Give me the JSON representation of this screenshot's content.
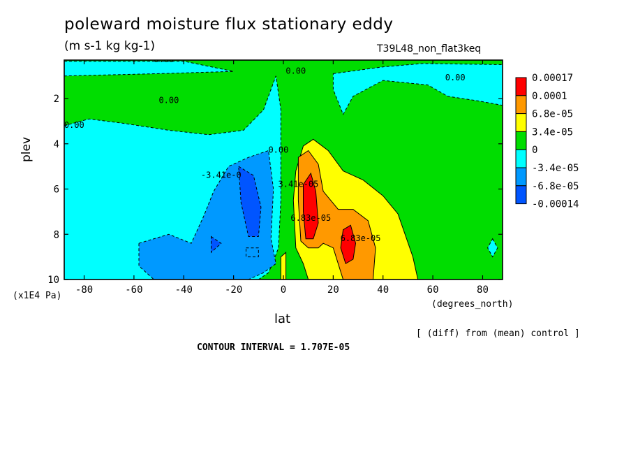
{
  "title": "poleward moisture flux stationary eddy",
  "units": "(m s-1 kg kg-1)",
  "run_id": "T39L48_non_flat3keq",
  "diff_note": "[ (diff) from (mean) control ]",
  "contour_interval": "CONTOUR INTERVAL = 1.707E-05",
  "chart_data": {
    "type": "heatmap",
    "xlabel": "lat",
    "xunit": "(degrees_north)",
    "ylabel": "plev",
    "yunit": "(x1E4 Pa)",
    "xlim": [
      -88,
      88
    ],
    "ylim": [
      10,
      0.3
    ],
    "xticks": [
      -80,
      -60,
      -40,
      -20,
      0,
      20,
      40,
      60,
      80
    ],
    "xtick_labels": [
      "-80",
      "-60",
      "-40",
      "-20",
      "0",
      "20",
      "40",
      "60",
      "80"
    ],
    "yticks": [
      2,
      4,
      6,
      8,
      10
    ],
    "ytick_labels": [
      "2",
      "4",
      "6",
      "8",
      "10"
    ],
    "colorbar": {
      "labels": [
        "0.00017",
        "0.0001",
        "6.8e-05",
        "3.4e-05",
        "0",
        "-3.4e-05",
        "-6.8e-05",
        "-0.00014"
      ],
      "colors": [
        "#ff0000",
        "#ff9900",
        "#ffff00",
        "#00dd00",
        "#00ffff",
        "#0099ff",
        "#0055ff"
      ]
    },
    "contour_labels": [
      {
        "text": "0.00",
        "x": -48,
        "y": 0.4
      },
      {
        "text": "0.00",
        "x": 5,
        "y": 0.9
      },
      {
        "text": "0.00",
        "x": 69,
        "y": 1.2
      },
      {
        "text": "0.00",
        "x": -46,
        "y": 2.2
      },
      {
        "text": "0.00",
        "x": -84,
        "y": 3.3
      },
      {
        "text": "0.00",
        "x": -2,
        "y": 4.4
      },
      {
        "text": "-3.41e-0",
        "x": -25,
        "y": 5.5
      },
      {
        "text": "3.41e-05",
        "x": 6,
        "y": 5.9
      },
      {
        "text": "6.83e-05",
        "x": 11,
        "y": 7.4
      },
      {
        "text": "6.83e-05",
        "x": 31,
        "y": 8.3
      }
    ],
    "fields": [
      {
        "level": "0",
        "color": "#00dd00",
        "points": [
          [
            -88,
            0.3
          ],
          [
            88,
            0.3
          ],
          [
            88,
            10
          ],
          [
            -88,
            10
          ]
        ]
      },
      {
        "level": "-3.4e-05",
        "color": "#00ffff",
        "points": [
          [
            -88,
            3.2
          ],
          [
            -78,
            2.9
          ],
          [
            -64,
            3.1
          ],
          [
            -46,
            3.4
          ],
          [
            -30,
            3.6
          ],
          [
            -16,
            3.4
          ],
          [
            -8,
            2.5
          ],
          [
            -3,
            1.0
          ],
          [
            -1,
            2.5
          ],
          [
            -1,
            6.5
          ],
          [
            -2,
            8.6
          ],
          [
            -4,
            9.2
          ],
          [
            -6,
            9.7
          ],
          [
            -10,
            10
          ],
          [
            -88,
            10
          ]
        ]
      },
      {
        "level": "-3.4e-05",
        "color": "#00ffff",
        "points": [
          [
            -88,
            0.35
          ],
          [
            -40,
            0.35
          ],
          [
            -20,
            0.8
          ],
          [
            -50,
            0.9
          ],
          [
            -88,
            1.0
          ]
        ]
      },
      {
        "level": "-3.4e-05",
        "color": "#00ffff",
        "points": [
          [
            20,
            0.9
          ],
          [
            40,
            0.6
          ],
          [
            56,
            0.45
          ],
          [
            88,
            0.5
          ],
          [
            88,
            2.3
          ],
          [
            78,
            2.1
          ],
          [
            66,
            1.9
          ],
          [
            58,
            1.4
          ],
          [
            40,
            1.2
          ],
          [
            28,
            1.9
          ],
          [
            24,
            2.7
          ],
          [
            20,
            1.6
          ]
        ]
      },
      {
        "level": "-3.4e-05",
        "color": "#00ffff",
        "points": [
          [
            84,
            8.2
          ],
          [
            86,
            8.6
          ],
          [
            84,
            9.0
          ],
          [
            82,
            8.6
          ]
        ]
      },
      {
        "level": "-6.8e-05",
        "color": "#0099ff",
        "points": [
          [
            -58,
            8.4
          ],
          [
            -46,
            8.0
          ],
          [
            -37,
            8.4
          ],
          [
            -32,
            7.2
          ],
          [
            -28,
            6.1
          ],
          [
            -22,
            5.0
          ],
          [
            -14,
            4.6
          ],
          [
            -6,
            4.3
          ],
          [
            -4,
            6.0
          ],
          [
            -5,
            8.2
          ],
          [
            -3,
            9.3
          ],
          [
            -8,
            9.7
          ],
          [
            -14,
            10
          ],
          [
            -52,
            10
          ],
          [
            -58,
            9.4
          ]
        ]
      },
      {
        "level": "-6.8e-05",
        "color": "#0099ff",
        "points": [
          [
            -15,
            8.6
          ],
          [
            -10,
            8.6
          ],
          [
            -10,
            9.0
          ],
          [
            -15,
            9.0
          ]
        ]
      },
      {
        "level": "-0.00014",
        "color": "#0055ff",
        "points": [
          [
            -18,
            5.0
          ],
          [
            -12,
            5.4
          ],
          [
            -9,
            6.8
          ],
          [
            -10,
            8.1
          ],
          [
            -14,
            8.1
          ],
          [
            -17,
            6.6
          ]
        ]
      },
      {
        "level": "-0.00014",
        "color": "#0055ff",
        "points": [
          [
            -29,
            8.1
          ],
          [
            -25,
            8.4
          ],
          [
            -29,
            8.8
          ]
        ]
      },
      {
        "level": "3.4e-05",
        "color": "#ffff00",
        "points": [
          [
            5,
            5.2
          ],
          [
            8,
            4.1
          ],
          [
            12,
            3.8
          ],
          [
            18,
            4.3
          ],
          [
            24,
            5.2
          ],
          [
            32,
            5.6
          ],
          [
            40,
            6.3
          ],
          [
            46,
            7.1
          ],
          [
            52,
            9.0
          ],
          [
            54,
            10
          ],
          [
            10,
            10
          ],
          [
            8,
            9.3
          ],
          [
            5,
            8.6
          ],
          [
            4,
            6.5
          ]
        ]
      },
      {
        "level": "6.8e-05",
        "color": "#ff9900",
        "points": [
          [
            6,
            4.6
          ],
          [
            10,
            4.3
          ],
          [
            14,
            4.9
          ],
          [
            16,
            6.1
          ],
          [
            22,
            6.9
          ],
          [
            28,
            6.9
          ],
          [
            34,
            7.4
          ],
          [
            37,
            8.6
          ],
          [
            36,
            10
          ],
          [
            24,
            10
          ],
          [
            20,
            8.6
          ],
          [
            16,
            8.4
          ],
          [
            14,
            8.6
          ],
          [
            10,
            8.6
          ],
          [
            7,
            8.3
          ],
          [
            6,
            6.5
          ]
        ]
      },
      {
        "level": "0.00017",
        "color": "#ff0000",
        "points": [
          [
            8,
            5.8
          ],
          [
            11,
            5.3
          ],
          [
            13,
            6.1
          ],
          [
            14,
            7.5
          ],
          [
            12,
            8.2
          ],
          [
            9,
            8.2
          ],
          [
            8,
            7.0
          ]
        ]
      },
      {
        "level": "0.00017",
        "color": "#ff0000",
        "points": [
          [
            24,
            7.8
          ],
          [
            27,
            7.6
          ],
          [
            29,
            8.4
          ],
          [
            28,
            9.1
          ],
          [
            25,
            9.3
          ],
          [
            23,
            8.6
          ]
        ]
      },
      {
        "level": "3.4e-05",
        "color": "#ffff00",
        "points": [
          [
            -1,
            9.0
          ],
          [
            1,
            8.8
          ],
          [
            1,
            10
          ],
          [
            -1,
            10
          ]
        ]
      }
    ]
  }
}
